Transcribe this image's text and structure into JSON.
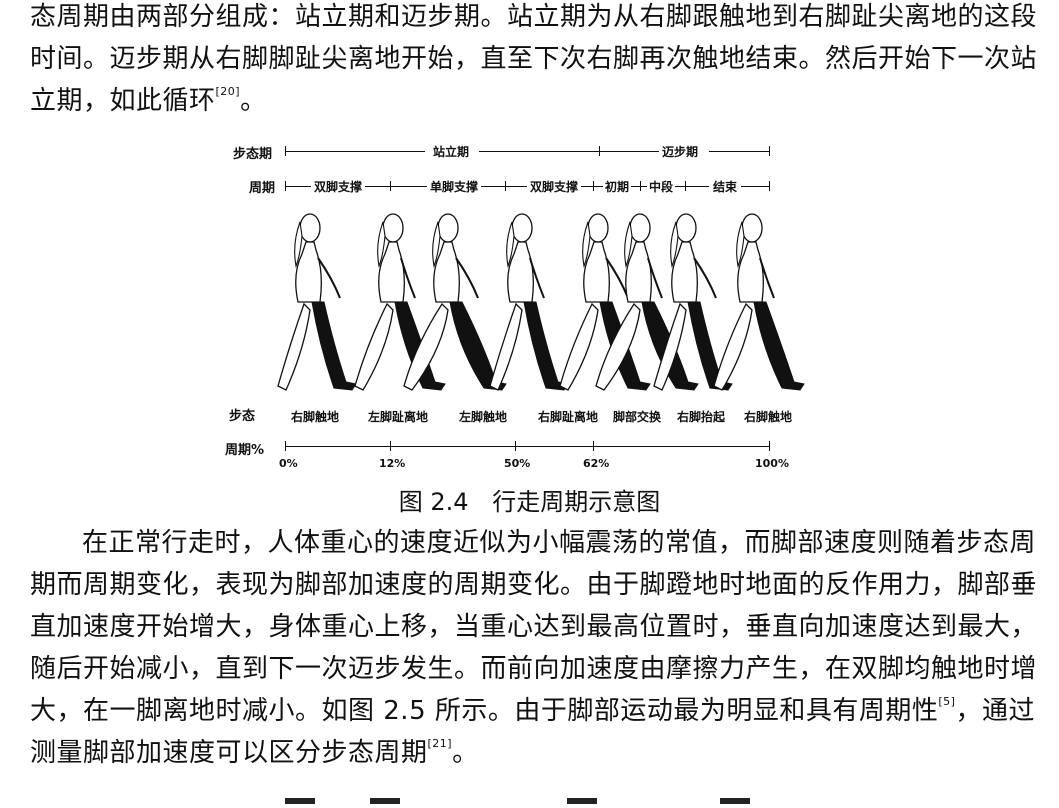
{
  "paragraph_top": {
    "line1": "态周期由两部分组成：站立期和迈步期。站立期为从右脚跟触地到右脚趾尖离地的这段",
    "line2": "时间。迈步期从右脚脚趾尖离地开始，直至下次右脚再次触地结束。然后开始下一次站",
    "line3_text": "立期，如此循环",
    "line3_ref": "[20]",
    "line3_end": "。"
  },
  "figure": {
    "row_gait_cycle": {
      "label": "步态期",
      "stance": "站立期",
      "swing": "迈步期"
    },
    "row_period": {
      "label": "周期",
      "phases": [
        "双脚支撑",
        "单脚支撑",
        "双脚支撑",
        "初期",
        "中段",
        "结束"
      ]
    },
    "row_gait": {
      "label": "步态",
      "events": [
        "右脚触地",
        "左脚趾离地",
        "左脚触地",
        "右脚趾离地",
        "脚部交换",
        "右脚抬起",
        "右脚触地"
      ]
    },
    "row_percent": {
      "label": "周期%",
      "ticks": [
        "0%",
        "12%",
        "50%",
        "62%",
        "100%"
      ]
    },
    "walker_count": 8
  },
  "caption": {
    "number": "图 2.4",
    "title": "行走周期示意图"
  },
  "paragraph_bottom": {
    "line1": "在正常行走时，人体重心的速度近似为小幅震荡的常值，而脚部速度则随着步态周",
    "line2": "期而周期变化，表现为脚部加速度的周期变化。由于脚蹬地时地面的反作用力，脚部垂",
    "line3": "直加速度开始增大，身体重心上移，当重心达到最高位置时，垂直向加速度达到最大，",
    "line4": "随后开始减小，直到下一次迈步发生。而前向加速度由摩擦力产生，在双脚均触地时增",
    "line5_text": "大，在一脚离地时减小。如图 2.5 所示。由于脚部运动最为明显和具有周期性",
    "line5_ref": "[5]",
    "line5_end": "，通过",
    "line6_text": "测量脚部加速度可以区分步态周期",
    "line6_ref": "[21]",
    "line6_end": "。"
  }
}
